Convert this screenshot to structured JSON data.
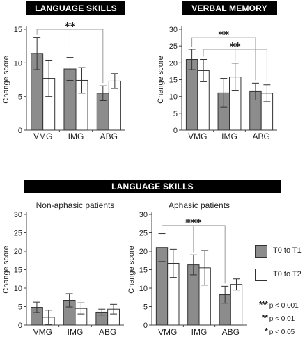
{
  "panels": {
    "top_left_title": "LANGUAGE SKILLS",
    "top_right_title": "VERBAL MEMORY",
    "bottom_title": "LANGUAGE SKILLS",
    "bottom_left_subtitle": "Non-aphasic patients",
    "bottom_right_subtitle": "Aphasic patients"
  },
  "legend": {
    "t1_label": "T0 to T1",
    "t2_label": "T0 to T2",
    "t1_color": "#8c8c8c",
    "t2_color": "#ffffff"
  },
  "significance": [
    {
      "stars": "***",
      "label": "p < 0.001"
    },
    {
      "stars": "**",
      "label": "p < 0.01"
    },
    {
      "stars": "*",
      "label": "p < 0.05"
    }
  ],
  "chart_data": [
    {
      "id": "c1",
      "type": "bar",
      "title": "LANGUAGE SKILLS",
      "ylabel": "Change score",
      "ylim": [
        0,
        15
      ],
      "yticks": [
        0,
        5,
        10,
        15
      ],
      "categories": [
        "VMG",
        "IMG",
        "ABG"
      ],
      "series": [
        {
          "name": "T0 to T1",
          "values": [
            11.4,
            9.1,
            5.5
          ],
          "err": [
            2.4,
            1.7,
            1.1
          ]
        },
        {
          "name": "T0 to T2",
          "values": [
            7.7,
            7.4,
            7.3
          ],
          "err": [
            2.7,
            1.9,
            1.1
          ]
        }
      ],
      "brackets": [
        {
          "from": [
            0,
            0
          ],
          "to": [
            2,
            0
          ],
          "level": 15.0,
          "mid": [
            1,
            0
          ],
          "stars": "**"
        }
      ]
    },
    {
      "id": "c2",
      "type": "bar",
      "title": "VERBAL MEMORY",
      "ylabel": "Change score",
      "ylim": [
        0,
        30
      ],
      "yticks": [
        0,
        5,
        10,
        15,
        20,
        25,
        30
      ],
      "categories": [
        "VMG",
        "IMG",
        "ABG"
      ],
      "series": [
        {
          "name": "T0 to T1",
          "values": [
            21.0,
            11.1,
            11.5
          ],
          "err": [
            3.0,
            4.3,
            2.5
          ]
        },
        {
          "name": "T0 to T2",
          "values": [
            17.7,
            15.8,
            11.0
          ],
          "err": [
            3.3,
            4.1,
            2.5
          ]
        }
      ],
      "brackets": [
        {
          "from": [
            0,
            0
          ],
          "to": [
            2,
            0
          ],
          "level": 27.5,
          "stars": "**"
        },
        {
          "from": [
            0,
            1
          ],
          "to": [
            2,
            1
          ],
          "level": 24.0,
          "mid": [
            1,
            1
          ],
          "stars": "**"
        }
      ]
    },
    {
      "id": "c3",
      "type": "bar",
      "subtitle": "Non-aphasic patients",
      "ylabel": "Change score",
      "ylim": [
        0,
        30
      ],
      "yticks": [
        0,
        5,
        10,
        15,
        20,
        25,
        30
      ],
      "categories": [
        "VMG",
        "IMG",
        "ABG"
      ],
      "series": [
        {
          "name": "T0 to T1",
          "values": [
            4.8,
            6.7,
            3.5
          ],
          "err": [
            1.4,
            1.8,
            0.8
          ]
        },
        {
          "name": "T0 to T2",
          "values": [
            2.1,
            4.5,
            4.3
          ],
          "err": [
            1.9,
            1.5,
            1.3
          ]
        }
      ],
      "brackets": []
    },
    {
      "id": "c4",
      "type": "bar",
      "subtitle": "Aphasic patients",
      "ylabel": "Change score",
      "ylim": [
        0,
        30
      ],
      "yticks": [
        0,
        5,
        10,
        15,
        20,
        25,
        30
      ],
      "categories": [
        "VMG",
        "IMG",
        "ABG"
      ],
      "series": [
        {
          "name": "T0 to T1",
          "values": [
            21.0,
            16.3,
            8.2
          ],
          "err": [
            3.8,
            2.7,
            2.3
          ]
        },
        {
          "name": "T0 to T2",
          "values": [
            16.7,
            15.5,
            11.0
          ],
          "err": [
            3.8,
            4.7,
            1.5
          ]
        }
      ],
      "brackets": [
        {
          "from": [
            0,
            0
          ],
          "to": [
            2,
            0
          ],
          "level": 27.0,
          "mid": [
            1,
            0
          ],
          "stars": "***"
        }
      ]
    }
  ]
}
